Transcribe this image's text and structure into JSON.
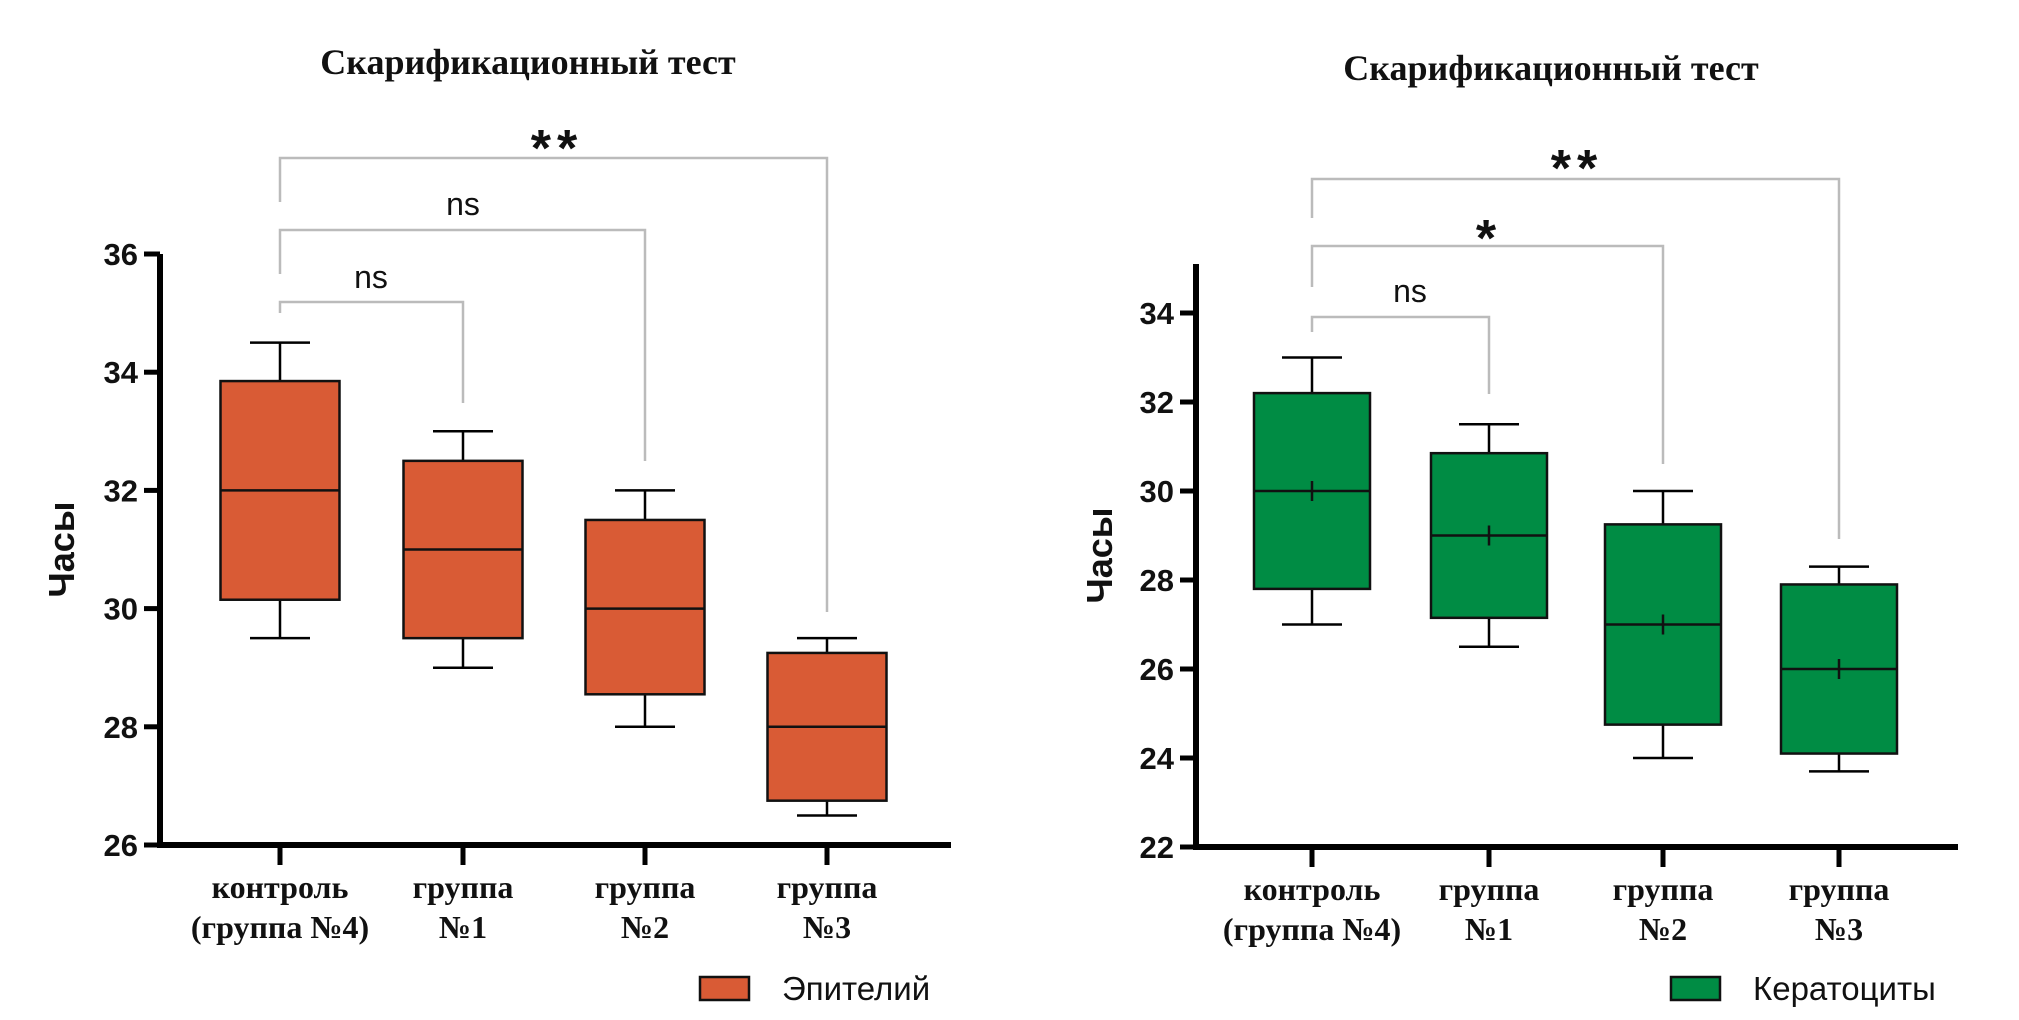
{
  "chart_data": [
    {
      "type": "box",
      "title": "Скарификационный тест",
      "ylabel": "Часы",
      "ylim": [
        26,
        36
      ],
      "yticks": [
        "26",
        "28",
        "30",
        "32",
        "34",
        "36"
      ],
      "categories": [
        [
          "контроль",
          "(группа №4)"
        ],
        [
          "группа",
          "№1"
        ],
        [
          "группа",
          "№2"
        ],
        [
          "группа",
          "№3"
        ]
      ],
      "legend": "Эпителий",
      "color": "#D95B35",
      "show_mean": false,
      "boxes": [
        {
          "min": 29.5,
          "q1": 30.15,
          "median": 32,
          "q3": 33.85,
          "max": 34.5
        },
        {
          "min": 29,
          "q1": 29.5,
          "median": 31,
          "q3": 32.5,
          "max": 33
        },
        {
          "min": 28,
          "q1": 28.55,
          "median": 30,
          "q3": 31.5,
          "max": 32
        },
        {
          "min": 26.5,
          "q1": 26.75,
          "median": 28,
          "q3": 29.25,
          "max": 29.5
        }
      ],
      "comparisons": [
        {
          "from": 0,
          "to": 1,
          "label": "ns"
        },
        {
          "from": 0,
          "to": 2,
          "label": "ns"
        },
        {
          "from": 0,
          "to": 3,
          "label": "**"
        }
      ]
    },
    {
      "type": "box",
      "title": "Скарификационный тест",
      "ylabel": "Часы",
      "ylim": [
        22,
        35
      ],
      "yticks": [
        "22",
        "24",
        "26",
        "28",
        "30",
        "32",
        "34"
      ],
      "categories": [
        [
          "контроль",
          "(группа №4)"
        ],
        [
          "группа",
          "№1"
        ],
        [
          "группа",
          "№2"
        ],
        [
          "группа",
          "№3"
        ]
      ],
      "legend": "Кератоциты",
      "color": "#008C44",
      "show_mean": true,
      "boxes": [
        {
          "min": 27,
          "q1": 27.8,
          "median": 30,
          "mean": 30,
          "q3": 32.2,
          "max": 33
        },
        {
          "min": 26.5,
          "q1": 27.15,
          "median": 29,
          "mean": 29,
          "q3": 30.85,
          "max": 31.5
        },
        {
          "min": 24,
          "q1": 24.75,
          "median": 27,
          "mean": 27,
          "q3": 29.25,
          "max": 30
        },
        {
          "min": 23.7,
          "q1": 24.1,
          "median": 26,
          "mean": 26,
          "q3": 27.9,
          "max": 28.3
        }
      ],
      "comparisons": [
        {
          "from": 0,
          "to": 1,
          "label": "ns"
        },
        {
          "from": 0,
          "to": 2,
          "label": "*"
        },
        {
          "from": 0,
          "to": 3,
          "label": "**"
        }
      ]
    }
  ]
}
